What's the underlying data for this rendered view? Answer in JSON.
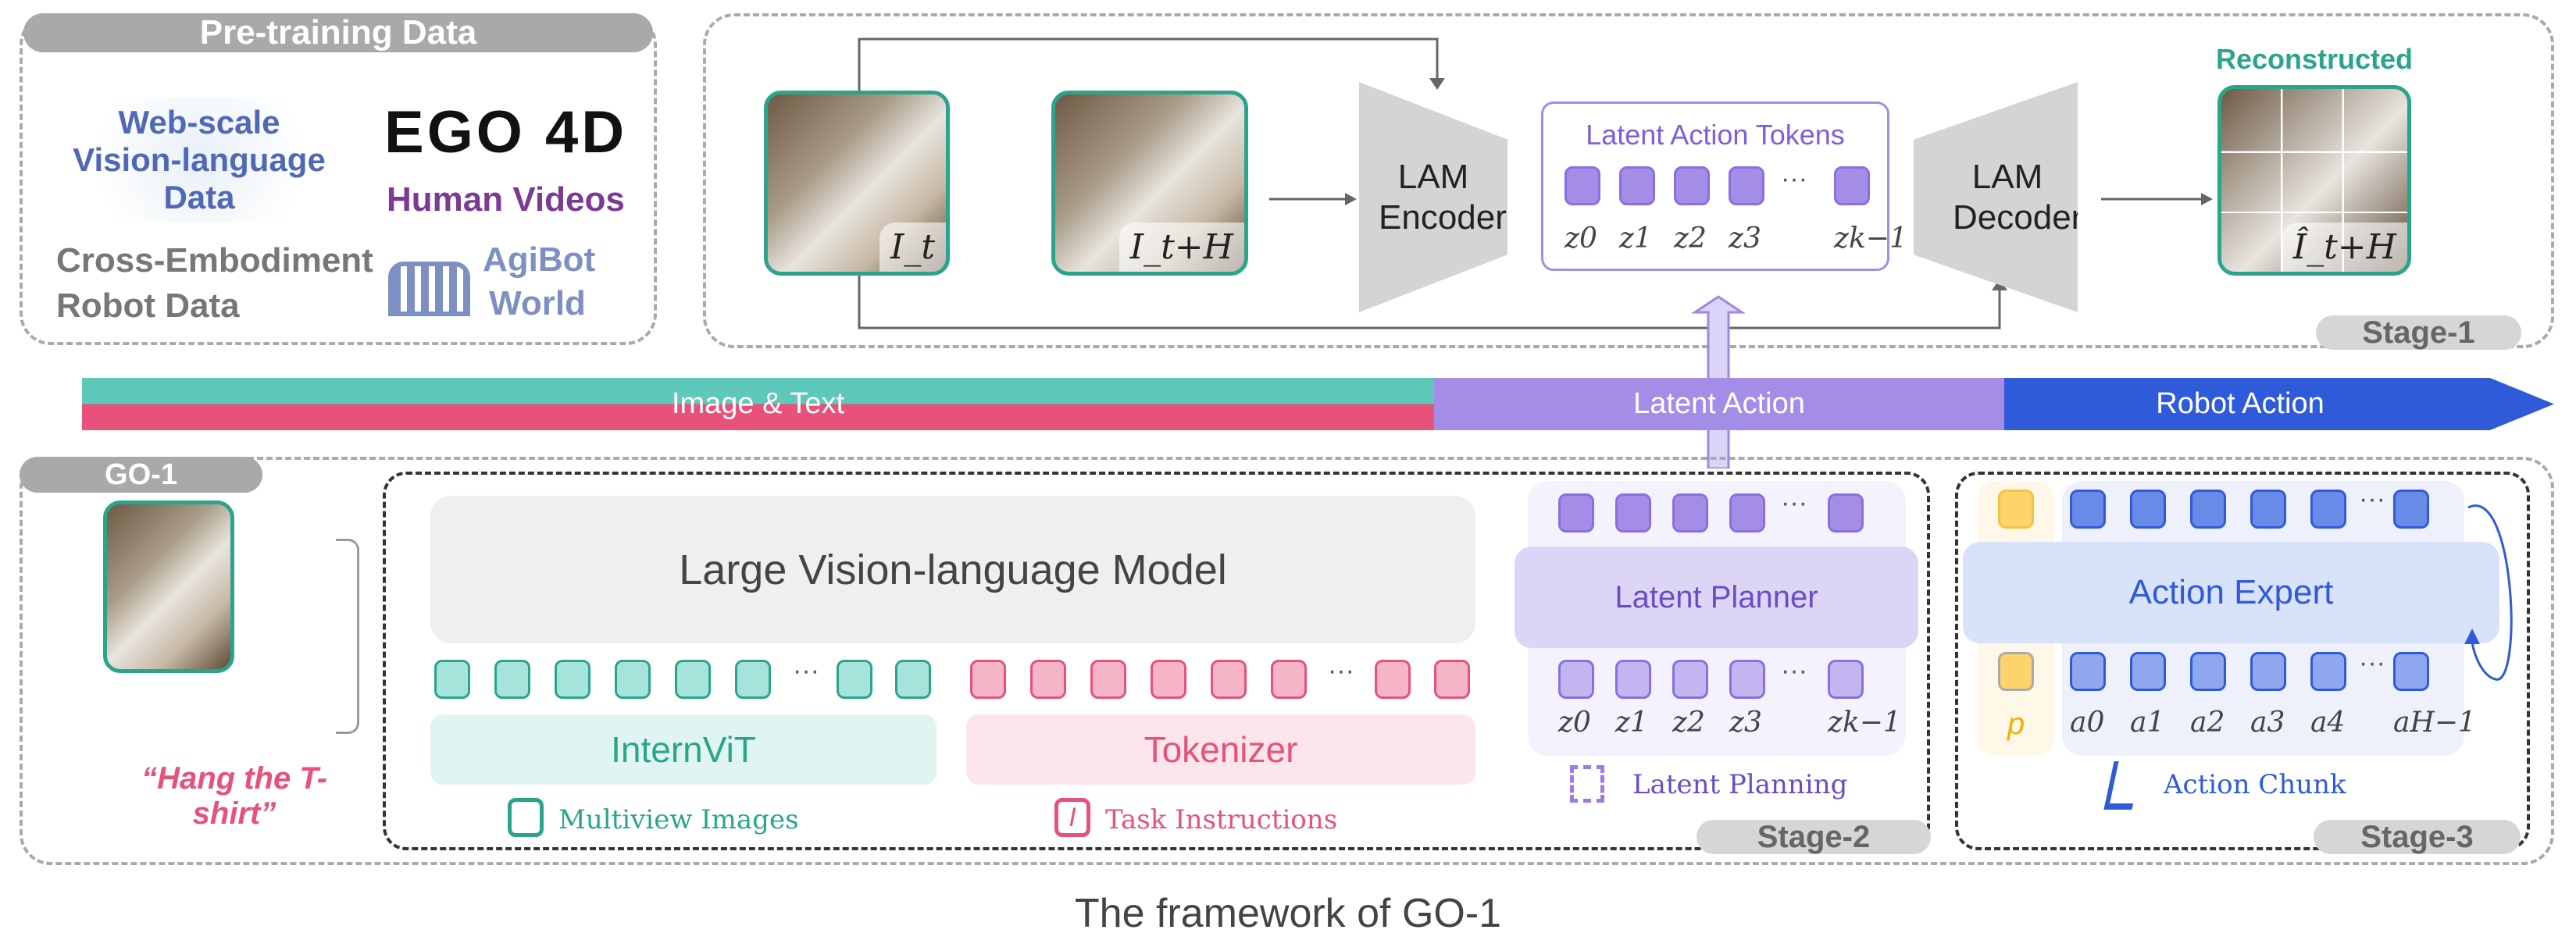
{
  "pretraining": {
    "title": "Pre-training Data",
    "web": "Web-scale Vision-language Data",
    "ego_logo": "EGO 4D",
    "human_videos": "Human Videos",
    "cross": "Cross-Embodiment Robot Data",
    "agibot": "AgiBot World"
  },
  "stage1": {
    "img_t": "I_t",
    "img_th": "I_t+H",
    "encoder": "LAM Encoder",
    "decoder": "LAM Decoder",
    "tokens_title": "Latent Action Tokens",
    "z": [
      "z0",
      "z1",
      "z2",
      "z3",
      "zk−1"
    ],
    "reconstructed": "Reconstructed",
    "recon_label": "Î_t+H",
    "stage": "Stage-1"
  },
  "bar": {
    "image_text": "Image & Text",
    "latent": "Latent Action",
    "robot": "Robot Action"
  },
  "go1": {
    "title": "GO-1",
    "instruction": "“Hang the T-shirt”",
    "lvlm": "Large Vision-language Model",
    "internvit": "InternViT",
    "tokenizer": "Tokenizer",
    "multiview": "Multiview Images",
    "task": "Task Instructions",
    "planner": "Latent Planner",
    "latent_planning": "Latent Planning",
    "stage2": "Stage-2",
    "expert": "Action Expert",
    "p": "p",
    "a": [
      "a0",
      "a1",
      "a2",
      "a3",
      "a4",
      "aH−1"
    ],
    "action_chunk": "Action Chunk",
    "stage3": "Stage-3",
    "ellipsis": "···"
  },
  "caption": "The framework of GO-1",
  "colors": {
    "teal": "#5ec9b8",
    "pink": "#e8517a",
    "purple": "#a48de6",
    "blue": "#2f5bdb",
    "yellow": "#fdd46c"
  }
}
